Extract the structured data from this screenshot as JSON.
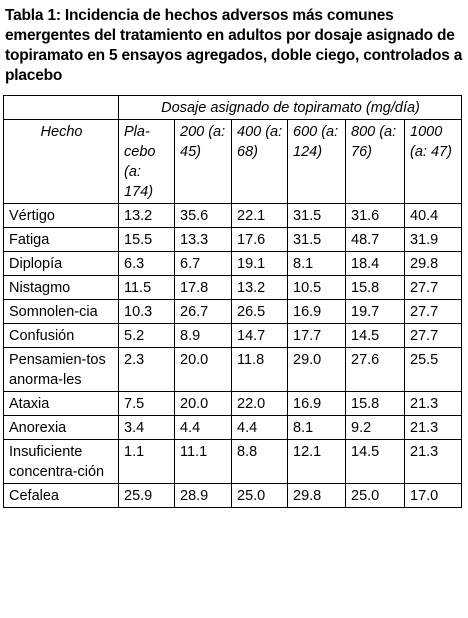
{
  "caption": "Tabla 1: Incidencia de hechos adversos más comunes emergentes del tratamiento en adultos por dosaje asignado de topiramato en 5 ensayos agregados, doble ciego, controlados a placebo",
  "table": {
    "group_header": "Dosaje asignado de topiramato (mg/día)",
    "row_header": "Hecho",
    "columns": [
      "Pla-cebo (a: 174)",
      "200 (a: 45)",
      "400 (a: 68)",
      "600 (a: 124)",
      "800 (a: 76)",
      "1000 (a: 47)"
    ],
    "rows": [
      {
        "label": "Vértigo",
        "values": [
          "13.2",
          "35.6",
          "22.1",
          "31.5",
          "31.6",
          "40.4"
        ]
      },
      {
        "label": "Fatiga",
        "values": [
          "15.5",
          "13.3",
          "17.6",
          "31.5",
          "48.7",
          "31.9"
        ]
      },
      {
        "label": "Diplopía",
        "values": [
          "6.3",
          "6.7",
          "19.1",
          "8.1",
          "18.4",
          "29.8"
        ]
      },
      {
        "label": "Nistagmo",
        "values": [
          "11.5",
          "17.8",
          "13.2",
          "10.5",
          "15.8",
          "27.7"
        ]
      },
      {
        "label": "Somnolen-cia",
        "values": [
          "10.3",
          "26.7",
          "26.5",
          "16.9",
          "19.7",
          "27.7"
        ]
      },
      {
        "label": "Confusión",
        "values": [
          "5.2",
          "8.9",
          "14.7",
          "17.7",
          "14.5",
          "27.7"
        ]
      },
      {
        "label": "Pensamien-tos anorma-les",
        "values": [
          "2.3",
          "20.0",
          "11.8",
          "29.0",
          "27.6",
          "25.5"
        ]
      },
      {
        "label": "Ataxia",
        "values": [
          "7.5",
          "20.0",
          "22.0",
          "16.9",
          "15.8",
          "21.3"
        ]
      },
      {
        "label": "Anorexia",
        "values": [
          "3.4",
          "4.4",
          "4.4",
          "8.1",
          "9.2",
          "21.3"
        ]
      },
      {
        "label": "Insuficiente concentra-ción",
        "values": [
          "1.1",
          "11.1",
          "8.8",
          "12.1",
          "14.5",
          "21.3"
        ]
      },
      {
        "label": "Cefalea",
        "values": [
          "25.9",
          "28.9",
          "25.0",
          "29.8",
          "25.0",
          "17.0"
        ]
      }
    ]
  }
}
